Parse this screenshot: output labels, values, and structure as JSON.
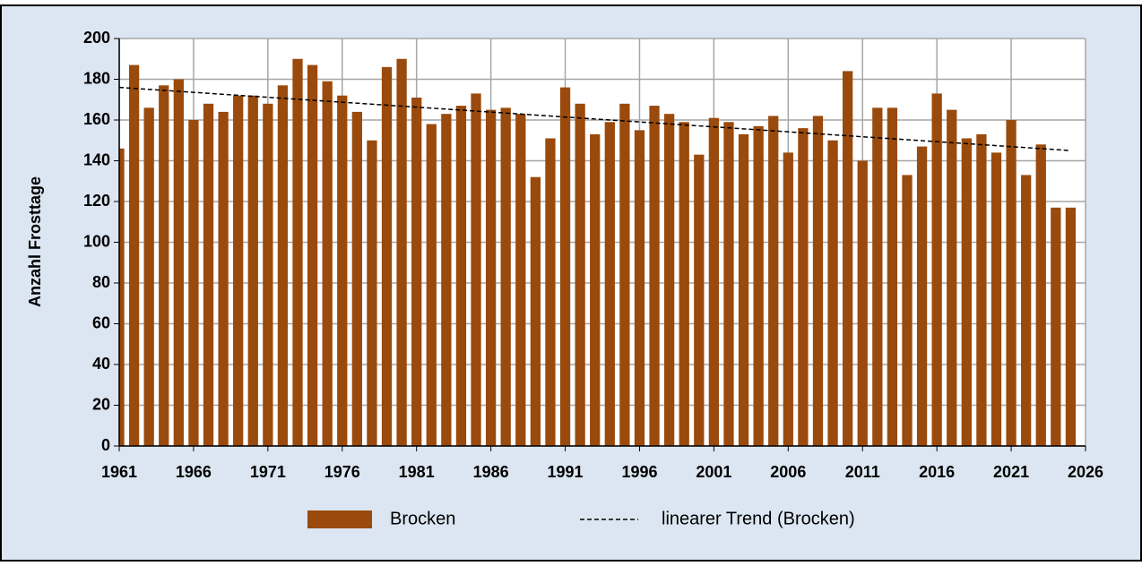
{
  "chart_data": {
    "type": "bar",
    "y_axis_label": "Anzahl Frosttage",
    "x": [
      1961,
      1962,
      1963,
      1964,
      1965,
      1966,
      1967,
      1968,
      1969,
      1970,
      1971,
      1972,
      1973,
      1974,
      1975,
      1976,
      1977,
      1978,
      1979,
      1980,
      1981,
      1982,
      1983,
      1984,
      1985,
      1986,
      1987,
      1988,
      1989,
      1990,
      1991,
      1992,
      1993,
      1994,
      1995,
      1996,
      1997,
      1998,
      1999,
      2000,
      2001,
      2002,
      2003,
      2004,
      2005,
      2006,
      2007,
      2008,
      2009,
      2010,
      2011,
      2012,
      2013,
      2014,
      2015,
      2016,
      2017,
      2018,
      2019,
      2020,
      2021,
      2022,
      2023,
      2024,
      2025
    ],
    "series": [
      {
        "name": "Brocken",
        "color": "#9a4a0c",
        "values": [
          146,
          187,
          166,
          177,
          180,
          160,
          168,
          164,
          172,
          172,
          168,
          177,
          190,
          187,
          179,
          172,
          164,
          150,
          186,
          190,
          171,
          158,
          163,
          167,
          173,
          165,
          166,
          163,
          132,
          151,
          176,
          168,
          153,
          159,
          168,
          155,
          167,
          163,
          159,
          143,
          161,
          159,
          153,
          157,
          162,
          144,
          156,
          162,
          150,
          184,
          140,
          166,
          166,
          133,
          147,
          173,
          165,
          151,
          153,
          144,
          160,
          133,
          148,
          117,
          117
        ]
      },
      {
        "name": "linearer Trend (Brocken)",
        "color": "#000000",
        "type": "line",
        "dashed": true,
        "x": [
          1961,
          2025
        ],
        "values": [
          176,
          145
        ]
      }
    ],
    "xlim": [
      1961,
      2026
    ],
    "xticks": [
      1961,
      1966,
      1971,
      1976,
      1981,
      1986,
      1991,
      1996,
      2001,
      2006,
      2011,
      2016,
      2021,
      2026
    ],
    "ylim": [
      0,
      200
    ],
    "yticks": [
      0,
      20,
      40,
      60,
      80,
      100,
      120,
      140,
      160,
      180,
      200
    ],
    "grid": true,
    "legend": "bottom"
  }
}
